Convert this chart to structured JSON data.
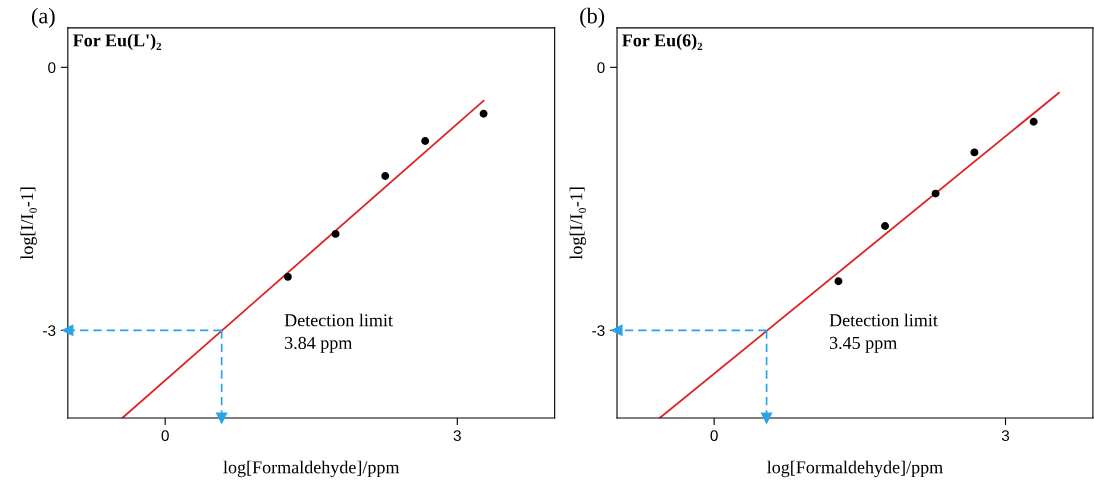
{
  "chart_data": [
    {
      "type": "scatter",
      "title": "For Eu(L')₂",
      "xlabel": "log[Formaldehyde]/ppm",
      "ylabel": "log[I/I₀-1]",
      "annotations": [
        "(a)",
        "Detection limit\n3.84 ppm"
      ],
      "x": [
        1.26,
        1.75,
        2.26,
        2.67,
        3.27
      ],
      "series": [
        {
          "color": "#000000",
          "marker": "circle",
          "values": [
            -2.39,
            -1.9,
            -1.24,
            -0.84,
            -0.53
          ]
        },
        {
          "type": "line",
          "color": "#e02020",
          "x": [
            -0.44,
            3.27
          ],
          "values": [
            -4.0,
            -0.38
          ]
        }
      ],
      "ref_lines": [
        {
          "axis": "x",
          "value": 0.58,
          "color": "#29a3e8",
          "line_style": "dashed"
        },
        {
          "axis": "y",
          "value": -3,
          "color": "#29a3e8",
          "line_style": "dashed"
        }
      ],
      "xlim": [
        -1,
        4
      ],
      "ylim": [
        -4,
        0.45
      ],
      "xticks": [
        0,
        3
      ],
      "yticks": [
        0,
        -3
      ],
      "grid": false,
      "legend": false
    },
    {
      "type": "scatter",
      "title": "For Eu(6)₂",
      "xlabel": "log[Formaldehyde]/ppm",
      "ylabel": "log[I/I₀-1]",
      "annotations": [
        "(b)",
        "Detection limit\n3.45 ppm"
      ],
      "x": [
        1.28,
        1.76,
        2.28,
        2.68,
        3.29
      ],
      "series": [
        {
          "color": "#000000",
          "marker": "circle",
          "values": [
            -2.44,
            -1.81,
            -1.44,
            -0.97,
            -0.62
          ]
        },
        {
          "type": "line",
          "color": "#e02020",
          "x": [
            -0.56,
            3.55
          ],
          "values": [
            -4.0,
            -0.29
          ]
        }
      ],
      "ref_lines": [
        {
          "axis": "x",
          "value": 0.54,
          "color": "#29a3e8",
          "line_style": "dashed"
        },
        {
          "axis": "y",
          "value": -3,
          "color": "#29a3e8",
          "line_style": "dashed"
        }
      ],
      "xlim": [
        -1,
        3.9
      ],
      "ylim": [
        -4,
        0.45
      ],
      "xticks": [
        0,
        3
      ],
      "yticks": [
        0,
        -3
      ],
      "grid": false,
      "legend": false
    }
  ]
}
